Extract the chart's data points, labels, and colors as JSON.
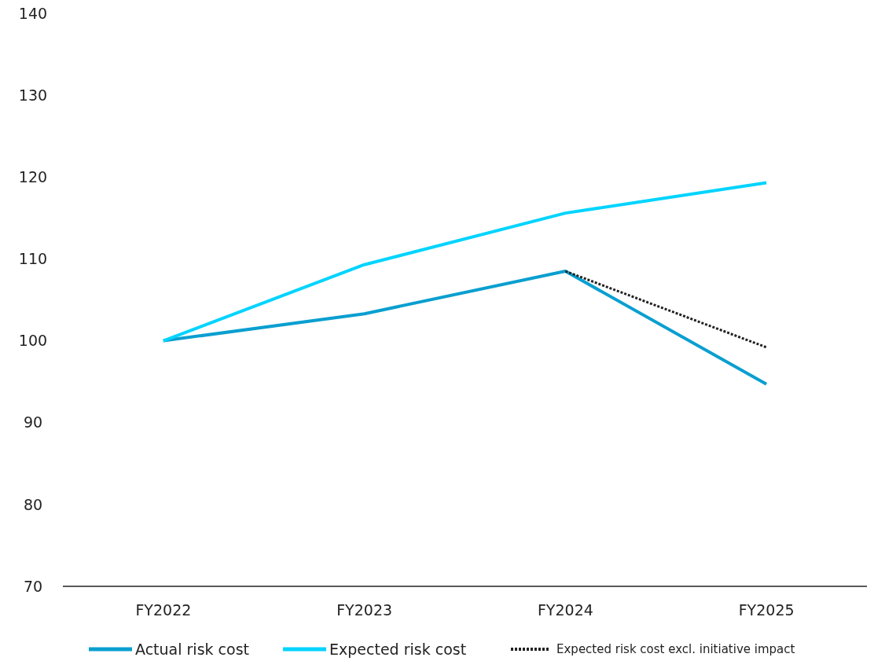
{
  "chart_data": {
    "type": "line",
    "categories": [
      "FY2022",
      "FY2023",
      "FY2024",
      "FY2025"
    ],
    "series": [
      {
        "name": "Actual risk cost",
        "color": "#0a9fd0",
        "values": [
          100,
          103.3,
          108.5,
          94.7
        ],
        "line_style": "solid"
      },
      {
        "name": "Expected risk cost",
        "color": "#00d4ff",
        "values": [
          100,
          109.3,
          115.6,
          119.3
        ],
        "line_style": "solid"
      },
      {
        "name": "Expected risk cost excl. initiative impact",
        "color": "#222222",
        "values": [
          null,
          null,
          108.5,
          99.2
        ],
        "line_style": "dotted"
      }
    ],
    "ylim": [
      70,
      140
    ],
    "yticks": [
      70,
      80,
      90,
      100,
      110,
      120,
      130,
      140
    ],
    "grid": false,
    "legend": "bottom",
    "marker": "none"
  }
}
